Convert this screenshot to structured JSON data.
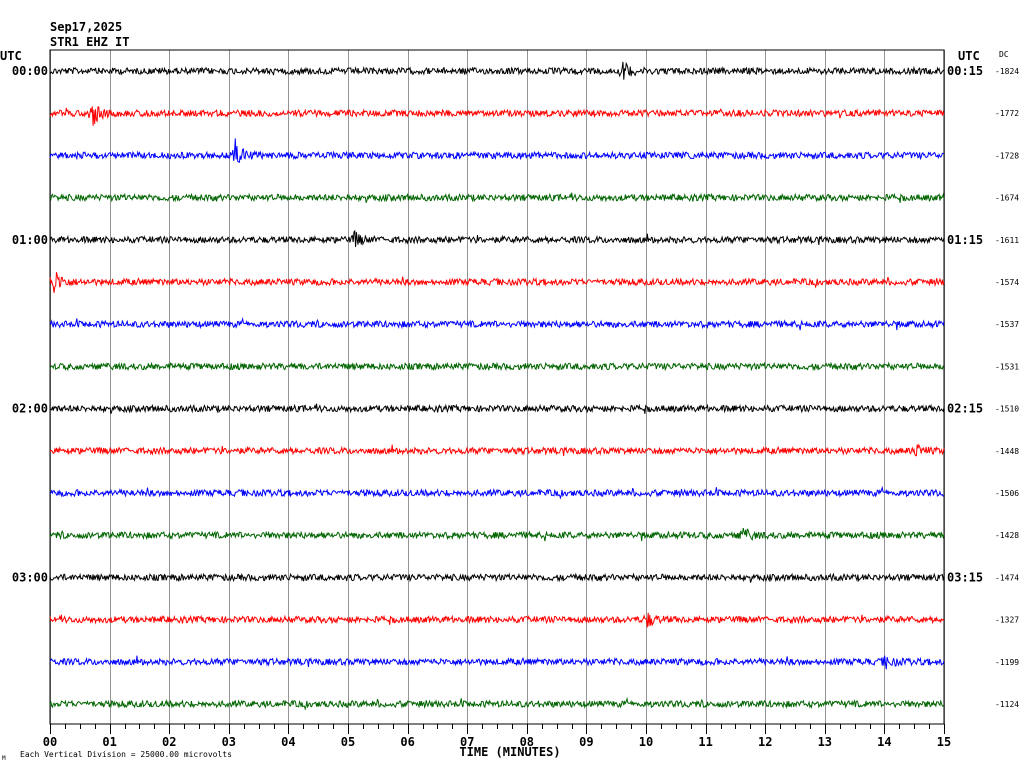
{
  "header": {
    "date": "Sep17,2025",
    "station": "STR1 EHZ IT"
  },
  "left_axis_label": "UTC",
  "right_axis_label": "UTC",
  "dc_label": "DC",
  "footer": {
    "scale_note": "Each Vertical Division = 25000.00 microvolts",
    "corner_mark": "M"
  },
  "colors": {
    "trace_cycle": [
      "#000000",
      "#ff0000",
      "#0000ff",
      "#006400"
    ],
    "grid": "#000000"
  },
  "chart_data": {
    "type": "line",
    "title": "",
    "xlabel": "TIME (MINUTES)",
    "ylabel": "",
    "xlim": [
      0,
      15
    ],
    "x_ticks": [
      "00",
      "01",
      "02",
      "03",
      "04",
      "05",
      "06",
      "07",
      "08",
      "09",
      "10",
      "11",
      "12",
      "13",
      "14",
      "15"
    ],
    "x_minor_step": 0.25,
    "grid": true,
    "rows": [
      {
        "left_label": "00:00",
        "right_label": "00:15",
        "dc": "-1824",
        "color": "#000000",
        "events": [
          {
            "t": 9.6,
            "amp": 2.0
          }
        ]
      },
      {
        "left_label": "",
        "right_label": "",
        "dc": "-1772",
        "color": "#ff0000",
        "events": [
          {
            "t": 0.7,
            "amp": 3.0
          }
        ]
      },
      {
        "left_label": "",
        "right_label": "",
        "dc": "-1728",
        "color": "#0000ff",
        "events": [
          {
            "t": 3.1,
            "amp": 3.5
          }
        ]
      },
      {
        "left_label": "",
        "right_label": "",
        "dc": "-1674",
        "color": "#006400",
        "events": []
      },
      {
        "left_label": "01:00",
        "right_label": "01:15",
        "dc": "-1611",
        "color": "#000000",
        "events": [
          {
            "t": 5.1,
            "amp": 1.6
          }
        ]
      },
      {
        "left_label": "",
        "right_label": "",
        "dc": "-1574",
        "color": "#ff0000",
        "events": [
          {
            "t": 0.05,
            "amp": 3.2
          }
        ]
      },
      {
        "left_label": "",
        "right_label": "",
        "dc": "-1537",
        "color": "#0000ff",
        "events": []
      },
      {
        "left_label": "",
        "right_label": "",
        "dc": "-1531",
        "color": "#006400",
        "events": []
      },
      {
        "left_label": "02:00",
        "right_label": "02:15",
        "dc": "-1510",
        "color": "#000000",
        "events": []
      },
      {
        "left_label": "",
        "right_label": "",
        "dc": "-1448",
        "color": "#ff0000",
        "events": [
          {
            "t": 14.5,
            "amp": 1.5
          }
        ]
      },
      {
        "left_label": "",
        "right_label": "",
        "dc": "-1506",
        "color": "#0000ff",
        "events": []
      },
      {
        "left_label": "",
        "right_label": "",
        "dc": "-1428",
        "color": "#006400",
        "events": [
          {
            "t": 11.6,
            "amp": 1.8
          }
        ]
      },
      {
        "left_label": "03:00",
        "right_label": "03:15",
        "dc": "-1474",
        "color": "#000000",
        "events": []
      },
      {
        "left_label": "",
        "right_label": "",
        "dc": "-1327",
        "color": "#ff0000",
        "events": [
          {
            "t": 10.0,
            "amp": 1.8
          }
        ]
      },
      {
        "left_label": "",
        "right_label": "",
        "dc": "-1199",
        "color": "#0000ff",
        "events": [
          {
            "t": 14.0,
            "amp": 1.4
          }
        ]
      },
      {
        "left_label": "",
        "right_label": "",
        "dc": "-1124",
        "color": "#006400",
        "events": []
      }
    ]
  }
}
